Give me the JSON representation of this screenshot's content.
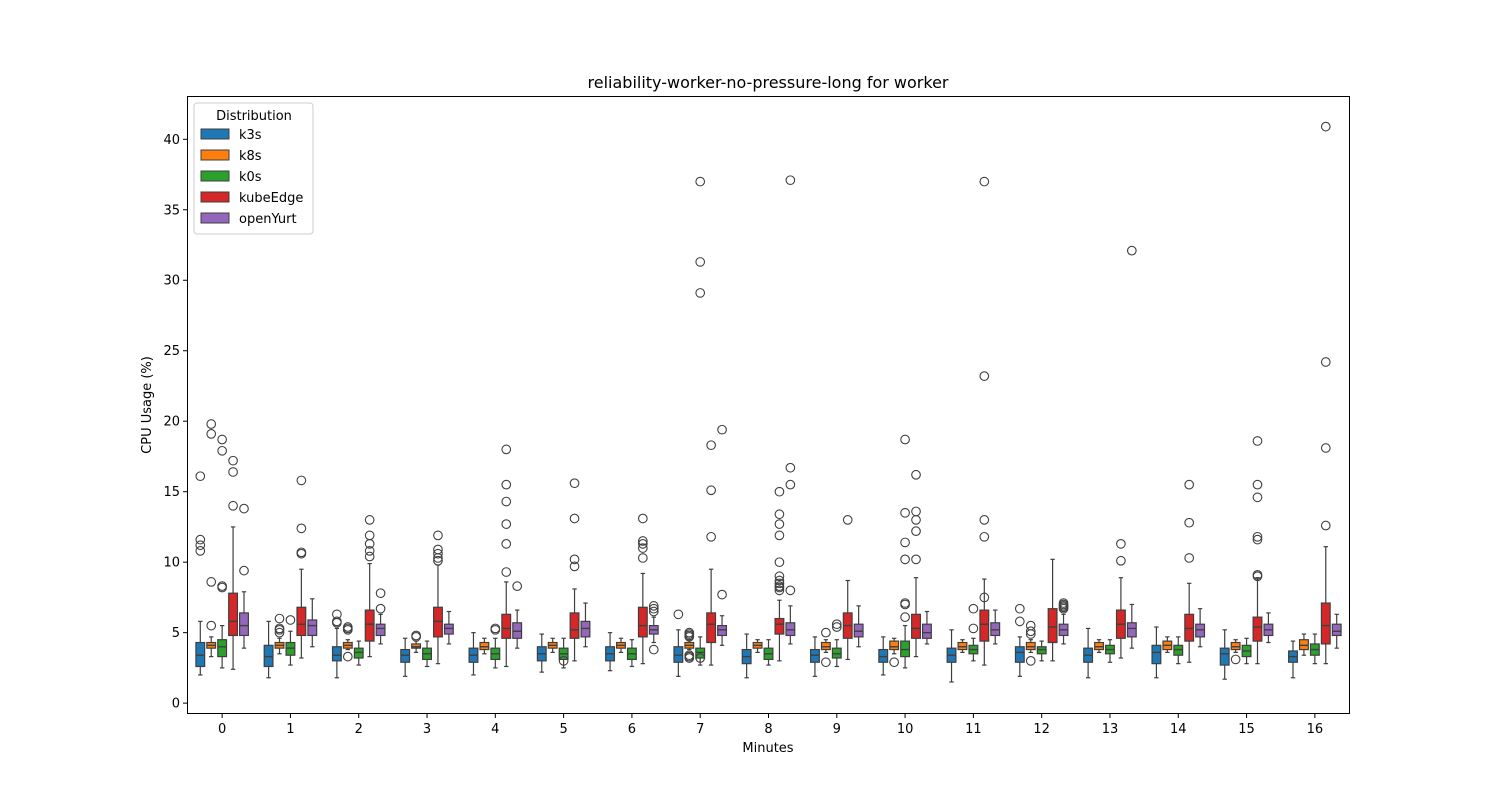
{
  "chart_data": {
    "type": "box",
    "title": "reliability-worker-no-pressure-long for worker",
    "xlabel": "Minutes",
    "ylabel": "CPU Usage (%)",
    "ylim": [
      -0.7,
      43.0
    ],
    "yticks": [
      0,
      5,
      10,
      15,
      20,
      25,
      30,
      35,
      40
    ],
    "categories": [
      "0",
      "1",
      "2",
      "3",
      "4",
      "5",
      "6",
      "7",
      "8",
      "9",
      "10",
      "11",
      "12",
      "13",
      "14",
      "15",
      "16"
    ],
    "grid": false,
    "legend": {
      "title": "Distribution",
      "placement": "top-left"
    },
    "series": [
      {
        "name": "k3s",
        "color": "#1f77b4",
        "boxes": [
          {
            "whislo": 2.0,
            "q1": 2.6,
            "med": 3.4,
            "q3": 4.3,
            "whishi": 5.8,
            "fliers": [
              16.1,
              11.6,
              11.2,
              10.8
            ]
          },
          {
            "whislo": 1.8,
            "q1": 2.6,
            "med": 3.3,
            "q3": 4.1,
            "whishi": 5.8,
            "fliers": []
          },
          {
            "whislo": 1.8,
            "q1": 3.0,
            "med": 3.4,
            "q3": 4.0,
            "whishi": 5.3,
            "fliers": [
              6.3,
              5.8,
              5.7
            ]
          },
          {
            "whislo": 1.9,
            "q1": 2.9,
            "med": 3.4,
            "q3": 3.8,
            "whishi": 4.6,
            "fliers": []
          },
          {
            "whislo": 2.0,
            "q1": 2.9,
            "med": 3.4,
            "q3": 3.9,
            "whishi": 5.0,
            "fliers": []
          },
          {
            "whislo": 2.2,
            "q1": 3.0,
            "med": 3.5,
            "q3": 4.0,
            "whishi": 4.9,
            "fliers": []
          },
          {
            "whislo": 2.3,
            "q1": 3.0,
            "med": 3.5,
            "q3": 4.0,
            "whishi": 5.0,
            "fliers": []
          },
          {
            "whislo": 1.9,
            "q1": 2.9,
            "med": 3.4,
            "q3": 4.0,
            "whishi": 5.2,
            "fliers": [
              6.3
            ]
          },
          {
            "whislo": 1.8,
            "q1": 2.8,
            "med": 3.3,
            "q3": 3.8,
            "whishi": 4.9,
            "fliers": []
          },
          {
            "whislo": 1.9,
            "q1": 2.9,
            "med": 3.4,
            "q3": 3.8,
            "whishi": 4.7,
            "fliers": []
          },
          {
            "whislo": 2.0,
            "q1": 2.9,
            "med": 3.3,
            "q3": 3.8,
            "whishi": 4.7,
            "fliers": []
          },
          {
            "whislo": 1.5,
            "q1": 2.9,
            "med": 3.4,
            "q3": 3.9,
            "whishi": 5.2,
            "fliers": []
          },
          {
            "whislo": 1.9,
            "q1": 2.9,
            "med": 3.6,
            "q3": 4.0,
            "whishi": 4.7,
            "fliers": [
              6.7,
              5.8
            ]
          },
          {
            "whislo": 1.8,
            "q1": 2.9,
            "med": 3.4,
            "q3": 3.9,
            "whishi": 5.3,
            "fliers": []
          },
          {
            "whislo": 1.8,
            "q1": 2.8,
            "med": 3.6,
            "q3": 4.1,
            "whishi": 5.4,
            "fliers": []
          },
          {
            "whislo": 1.7,
            "q1": 2.7,
            "med": 3.5,
            "q3": 3.9,
            "whishi": 5.2,
            "fliers": []
          },
          {
            "whislo": 1.8,
            "q1": 2.9,
            "med": 3.3,
            "q3": 3.7,
            "whishi": 4.4,
            "fliers": []
          }
        ]
      },
      {
        "name": "k8s",
        "color": "#ff7f0e",
        "boxes": [
          {
            "whislo": 3.3,
            "q1": 3.9,
            "med": 4.1,
            "q3": 4.3,
            "whishi": 4.7,
            "fliers": [
              19.8,
              19.1,
              5.5,
              8.6
            ]
          },
          {
            "whislo": 3.5,
            "q1": 3.9,
            "med": 4.1,
            "q3": 4.3,
            "whishi": 4.6,
            "fliers": [
              6.0,
              5.3,
              5.2,
              5.0
            ]
          },
          {
            "whislo": 3.8,
            "q1": 3.9,
            "med": 4.1,
            "q3": 4.3,
            "whishi": 4.5,
            "fliers": [
              5.4,
              5.3,
              5.2,
              3.3
            ]
          },
          {
            "whislo": 3.6,
            "q1": 3.9,
            "med": 4.0,
            "q3": 4.2,
            "whishi": 4.4,
            "fliers": [
              4.8,
              4.7
            ]
          },
          {
            "whislo": 3.5,
            "q1": 3.8,
            "med": 4.0,
            "q3": 4.3,
            "whishi": 4.6,
            "fliers": []
          },
          {
            "whislo": 3.6,
            "q1": 3.9,
            "med": 4.1,
            "q3": 4.3,
            "whishi": 4.6,
            "fliers": []
          },
          {
            "whislo": 3.6,
            "q1": 3.9,
            "med": 4.1,
            "q3": 4.3,
            "whishi": 4.6,
            "fliers": []
          },
          {
            "whislo": 3.8,
            "q1": 3.9,
            "med": 4.1,
            "q3": 4.3,
            "whishi": 4.5,
            "fliers": [
              5.0,
              4.9,
              4.8,
              4.7,
              3.4,
              3.3,
              3.2
            ]
          },
          {
            "whislo": 3.6,
            "q1": 3.9,
            "med": 4.1,
            "q3": 4.3,
            "whishi": 4.5,
            "fliers": []
          },
          {
            "whislo": 3.6,
            "q1": 3.8,
            "med": 4.0,
            "q3": 4.3,
            "whishi": 4.5,
            "fliers": [
              5.0,
              2.9
            ]
          },
          {
            "whislo": 3.5,
            "q1": 3.8,
            "med": 4.0,
            "q3": 4.4,
            "whishi": 4.6,
            "fliers": [
              2.9
            ]
          },
          {
            "whislo": 3.6,
            "q1": 3.8,
            "med": 4.0,
            "q3": 4.3,
            "whishi": 4.5,
            "fliers": []
          },
          {
            "whislo": 3.6,
            "q1": 3.8,
            "med": 4.0,
            "q3": 4.3,
            "whishi": 4.5,
            "fliers": [
              5.5,
              5.1,
              4.9,
              3.0
            ]
          },
          {
            "whislo": 3.6,
            "q1": 3.8,
            "med": 4.0,
            "q3": 4.3,
            "whishi": 4.5,
            "fliers": []
          },
          {
            "whislo": 3.6,
            "q1": 3.8,
            "med": 4.1,
            "q3": 4.4,
            "whishi": 4.7,
            "fliers": []
          },
          {
            "whislo": 3.6,
            "q1": 3.8,
            "med": 4.0,
            "q3": 4.3,
            "whishi": 4.5,
            "fliers": [
              3.1
            ]
          },
          {
            "whislo": 3.4,
            "q1": 3.8,
            "med": 4.1,
            "q3": 4.5,
            "whishi": 4.9,
            "fliers": []
          }
        ]
      },
      {
        "name": "k0s",
        "color": "#2ca02c",
        "boxes": [
          {
            "whislo": 2.5,
            "q1": 3.3,
            "med": 4.0,
            "q3": 4.5,
            "whishi": 5.5,
            "fliers": [
              18.7,
              17.9,
              8.3,
              8.2
            ]
          },
          {
            "whislo": 2.7,
            "q1": 3.4,
            "med": 3.9,
            "q3": 4.3,
            "whishi": 5.1,
            "fliers": [
              5.9
            ]
          },
          {
            "whislo": 2.7,
            "q1": 3.2,
            "med": 3.6,
            "q3": 3.9,
            "whishi": 4.4,
            "fliers": []
          },
          {
            "whislo": 2.6,
            "q1": 3.1,
            "med": 3.5,
            "q3": 3.9,
            "whishi": 4.4,
            "fliers": []
          },
          {
            "whislo": 2.5,
            "q1": 3.1,
            "med": 3.5,
            "q3": 3.9,
            "whishi": 4.6,
            "fliers": [
              5.3,
              5.2
            ]
          },
          {
            "whislo": 2.5,
            "q1": 3.1,
            "med": 3.5,
            "q3": 3.9,
            "whishi": 4.6,
            "fliers": [
              3.0
            ]
          },
          {
            "whislo": 2.6,
            "q1": 3.1,
            "med": 3.5,
            "q3": 3.9,
            "whishi": 4.5,
            "fliers": []
          },
          {
            "whislo": 2.7,
            "q1": 3.2,
            "med": 3.6,
            "q3": 3.9,
            "whishi": 4.7,
            "fliers": [
              37.0,
              31.3,
              29.1,
              3.2
            ]
          },
          {
            "whislo": 2.7,
            "q1": 3.1,
            "med": 3.5,
            "q3": 3.9,
            "whishi": 4.5,
            "fliers": []
          },
          {
            "whislo": 2.6,
            "q1": 3.2,
            "med": 3.5,
            "q3": 3.9,
            "whishi": 4.5,
            "fliers": [
              5.6,
              5.4
            ]
          },
          {
            "whislo": 2.5,
            "q1": 3.3,
            "med": 3.8,
            "q3": 4.4,
            "whishi": 5.5,
            "fliers": [
              18.7,
              13.5,
              11.4,
              10.2,
              7.1,
              7.0,
              6.1
            ]
          },
          {
            "whislo": 3.0,
            "q1": 3.5,
            "med": 3.8,
            "q3": 4.1,
            "whishi": 4.6,
            "fliers": [
              6.7,
              5.3
            ]
          },
          {
            "whislo": 3.0,
            "q1": 3.5,
            "med": 3.8,
            "q3": 4.0,
            "whishi": 4.4,
            "fliers": []
          },
          {
            "whislo": 2.9,
            "q1": 3.5,
            "med": 3.8,
            "q3": 4.1,
            "whishi": 4.5,
            "fliers": []
          },
          {
            "whislo": 2.8,
            "q1": 3.4,
            "med": 3.8,
            "q3": 4.1,
            "whishi": 4.7,
            "fliers": []
          },
          {
            "whislo": 2.8,
            "q1": 3.3,
            "med": 3.7,
            "q3": 4.1,
            "whishi": 4.6,
            "fliers": []
          },
          {
            "whislo": 2.8,
            "q1": 3.4,
            "med": 3.8,
            "q3": 4.2,
            "whishi": 4.9,
            "fliers": []
          }
        ]
      },
      {
        "name": "kubeEdge",
        "color": "#d62728",
        "boxes": [
          {
            "whislo": 2.4,
            "q1": 4.8,
            "med": 5.8,
            "q3": 7.8,
            "whishi": 12.5,
            "fliers": [
              17.2,
              16.4,
              14.0
            ]
          },
          {
            "whislo": 3.2,
            "q1": 4.8,
            "med": 5.6,
            "q3": 6.8,
            "whishi": 9.5,
            "fliers": [
              15.8,
              12.4,
              10.7,
              10.6
            ]
          },
          {
            "whislo": 3.3,
            "q1": 4.4,
            "med": 5.6,
            "q3": 6.6,
            "whishi": 9.9,
            "fliers": [
              13.0,
              11.9,
              11.3,
              10.8,
              10.4
            ]
          },
          {
            "whislo": 2.8,
            "q1": 4.7,
            "med": 5.8,
            "q3": 6.8,
            "whishi": 9.8,
            "fliers": [
              11.9,
              10.9,
              10.6,
              10.3,
              10.1
            ]
          },
          {
            "whislo": 2.6,
            "q1": 4.6,
            "med": 5.3,
            "q3": 6.3,
            "whishi": 8.6,
            "fliers": [
              18.0,
              15.5,
              14.3,
              12.7,
              11.3,
              9.3
            ]
          },
          {
            "whislo": 3.0,
            "q1": 4.6,
            "med": 5.2,
            "q3": 6.4,
            "whishi": 8.1,
            "fliers": [
              15.6,
              13.1,
              10.2,
              9.7
            ]
          },
          {
            "whislo": 2.8,
            "q1": 4.7,
            "med": 5.5,
            "q3": 6.8,
            "whishi": 9.2,
            "fliers": [
              13.1,
              11.5,
              11.3,
              11.0,
              10.3
            ]
          },
          {
            "whislo": 2.7,
            "q1": 4.3,
            "med": 5.6,
            "q3": 6.4,
            "whishi": 9.5,
            "fliers": [
              18.3,
              15.1,
              11.8
            ]
          },
          {
            "whislo": 3.0,
            "q1": 4.9,
            "med": 5.6,
            "q3": 6.0,
            "whishi": 7.3,
            "fliers": [
              15.0,
              13.4,
              12.7,
              11.9,
              10.0,
              8.7,
              8.5,
              8.3,
              8.2,
              8.0,
              9.0
            ]
          },
          {
            "whislo": 3.1,
            "q1": 4.6,
            "med": 5.5,
            "q3": 6.4,
            "whishi": 8.7,
            "fliers": [
              13.0
            ]
          },
          {
            "whislo": 3.3,
            "q1": 4.6,
            "med": 5.3,
            "q3": 6.3,
            "whishi": 8.9,
            "fliers": [
              16.2,
              13.6,
              13.0,
              12.2,
              10.2
            ]
          },
          {
            "whislo": 2.7,
            "q1": 4.4,
            "med": 5.6,
            "q3": 6.6,
            "whishi": 8.8,
            "fliers": [
              37.0,
              23.2,
              13.0,
              11.8,
              7.5
            ]
          },
          {
            "whislo": 3.0,
            "q1": 4.3,
            "med": 5.4,
            "q3": 6.7,
            "whishi": 10.2,
            "fliers": []
          },
          {
            "whislo": 3.2,
            "q1": 4.6,
            "med": 5.6,
            "q3": 6.6,
            "whishi": 8.9,
            "fliers": [
              11.3,
              10.1
            ]
          },
          {
            "whislo": 2.9,
            "q1": 4.4,
            "med": 5.3,
            "q3": 6.3,
            "whishi": 8.5,
            "fliers": [
              15.5,
              12.8,
              10.3
            ]
          },
          {
            "whislo": 2.8,
            "q1": 4.4,
            "med": 5.4,
            "q3": 6.1,
            "whishi": 8.9,
            "fliers": [
              18.6,
              15.5,
              14.6,
              11.8,
              11.6,
              9.1,
              9.0
            ]
          },
          {
            "whislo": 2.8,
            "q1": 4.2,
            "med": 5.5,
            "q3": 7.1,
            "whishi": 11.1,
            "fliers": [
              40.9,
              24.2,
              18.1,
              12.6
            ]
          }
        ]
      },
      {
        "name": "openYurt",
        "color": "#9467bd",
        "boxes": [
          {
            "whislo": 3.9,
            "q1": 4.8,
            "med": 5.5,
            "q3": 6.4,
            "whishi": 7.9,
            "fliers": [
              13.8,
              9.4
            ]
          },
          {
            "whislo": 4.0,
            "q1": 4.8,
            "med": 5.5,
            "q3": 5.9,
            "whishi": 7.4,
            "fliers": []
          },
          {
            "whislo": 4.2,
            "q1": 4.8,
            "med": 5.3,
            "q3": 5.6,
            "whishi": 6.3,
            "fliers": [
              7.8,
              6.7
            ]
          },
          {
            "whislo": 4.2,
            "q1": 4.9,
            "med": 5.3,
            "q3": 5.6,
            "whishi": 6.5,
            "fliers": []
          },
          {
            "whislo": 3.9,
            "q1": 4.6,
            "med": 5.1,
            "q3": 5.7,
            "whishi": 6.6,
            "fliers": [
              8.3
            ]
          },
          {
            "whislo": 4.0,
            "q1": 4.7,
            "med": 5.3,
            "q3": 5.8,
            "whishi": 7.1,
            "fliers": []
          },
          {
            "whislo": 4.3,
            "q1": 4.9,
            "med": 5.2,
            "q3": 5.5,
            "whishi": 6.1,
            "fliers": [
              6.9,
              6.7,
              6.5,
              3.8
            ]
          },
          {
            "whislo": 4.1,
            "q1": 4.8,
            "med": 5.2,
            "q3": 5.5,
            "whishi": 6.2,
            "fliers": [
              19.4,
              7.7
            ]
          },
          {
            "whislo": 4.2,
            "q1": 4.8,
            "med": 5.2,
            "q3": 5.7,
            "whishi": 6.9,
            "fliers": [
              37.1,
              16.7,
              15.5,
              8.0
            ]
          },
          {
            "whislo": 4.0,
            "q1": 4.7,
            "med": 5.1,
            "q3": 5.6,
            "whishi": 6.9,
            "fliers": []
          },
          {
            "whislo": 4.2,
            "q1": 4.6,
            "med": 5.0,
            "q3": 5.6,
            "whishi": 6.5,
            "fliers": []
          },
          {
            "whislo": 4.2,
            "q1": 4.8,
            "med": 5.2,
            "q3": 5.7,
            "whishi": 6.6,
            "fliers": []
          },
          {
            "whislo": 4.2,
            "q1": 4.8,
            "med": 5.2,
            "q3": 5.6,
            "whishi": 6.3,
            "fliers": [
              7.1,
              7.0,
              6.9,
              6.8,
              6.7
            ]
          },
          {
            "whislo": 3.9,
            "q1": 4.7,
            "med": 5.3,
            "q3": 5.7,
            "whishi": 7.0,
            "fliers": [
              32.1
            ]
          },
          {
            "whislo": 4.0,
            "q1": 4.7,
            "med": 5.2,
            "q3": 5.6,
            "whishi": 6.7,
            "fliers": []
          },
          {
            "whislo": 4.3,
            "q1": 4.8,
            "med": 5.2,
            "q3": 5.6,
            "whishi": 6.4,
            "fliers": []
          },
          {
            "whislo": 3.9,
            "q1": 4.8,
            "med": 5.1,
            "q3": 5.6,
            "whishi": 6.3,
            "fliers": []
          }
        ]
      }
    ]
  }
}
